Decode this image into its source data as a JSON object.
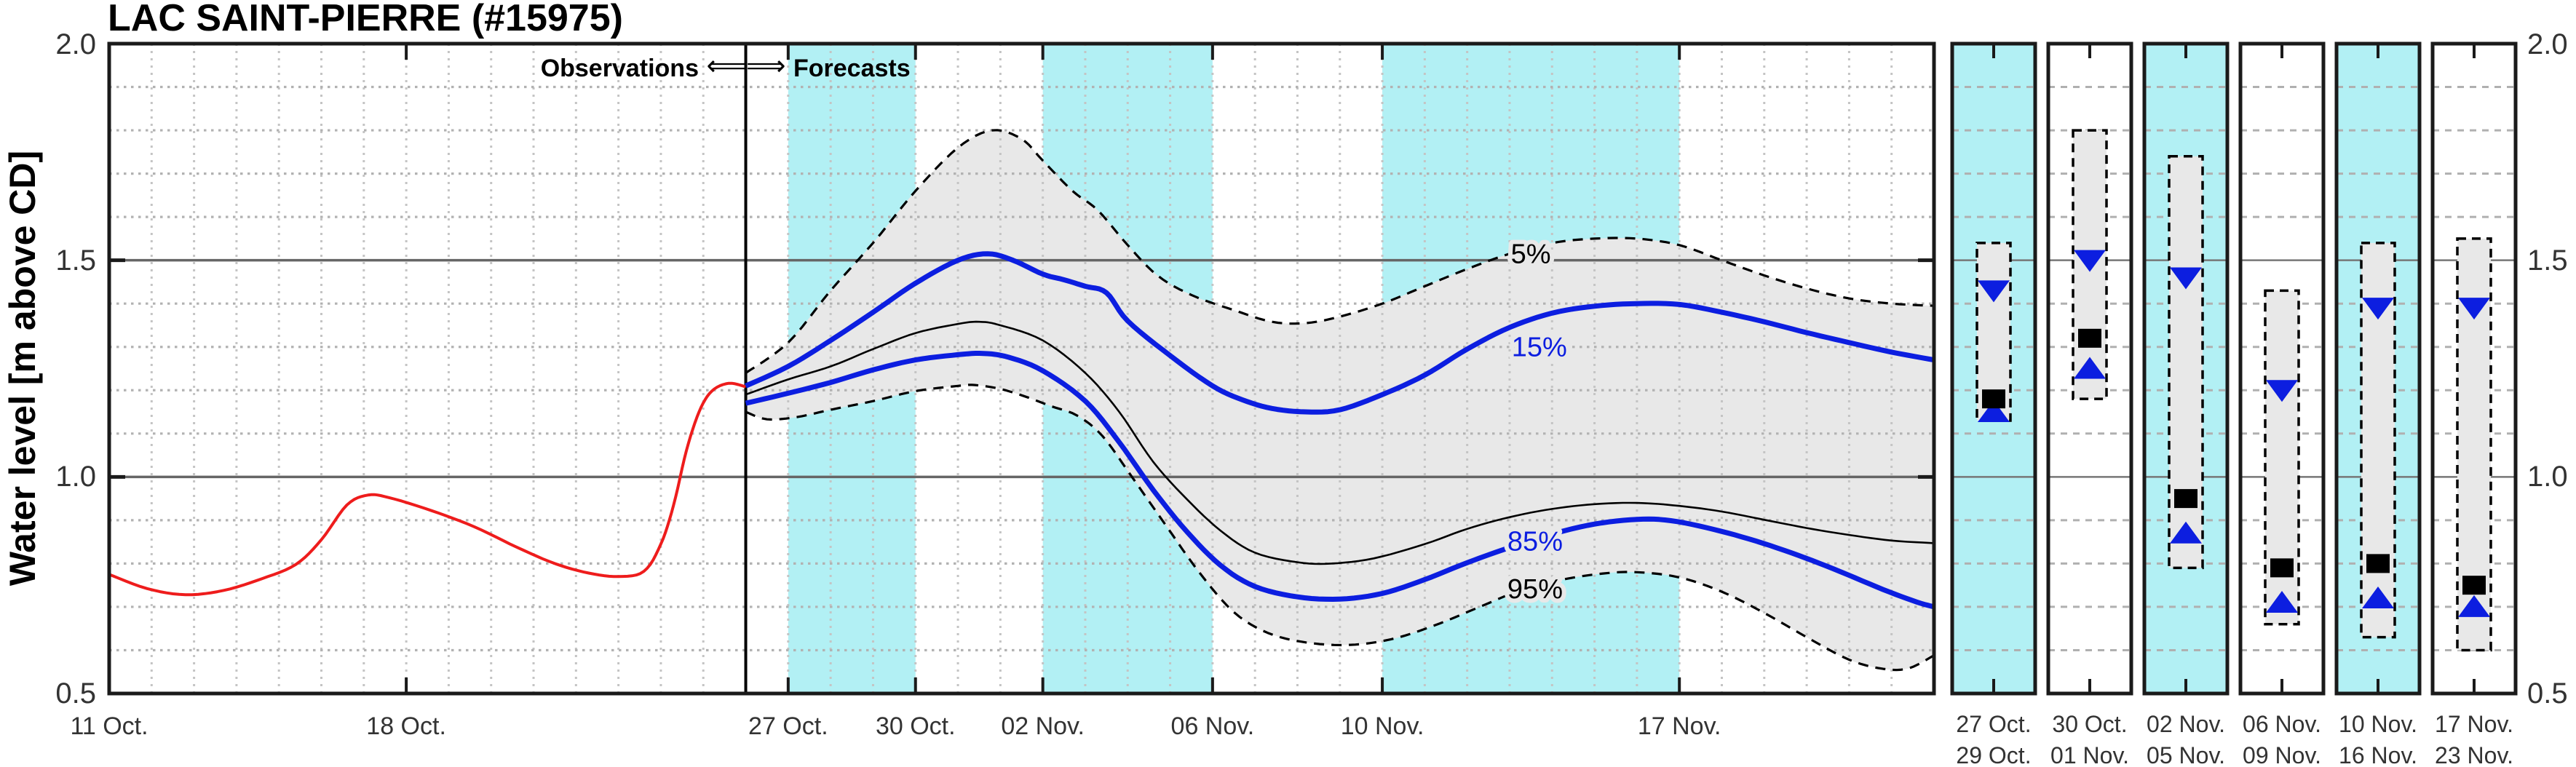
{
  "title": "LAC SAINT-PIERRE (#15975)",
  "header": {
    "observations": "Observations",
    "arrows": "⟸⟹",
    "forecasts": "Forecasts"
  },
  "y_axis": {
    "label": "Water level [m above CD]",
    "ticks": [
      "2.0",
      "1.5",
      "1.0",
      "0.5"
    ]
  },
  "colors": {
    "observed_red": "#ee1c1c",
    "percentile_blue": "#0c1ee0",
    "line_black": "#000000",
    "band_gray": "#e8e8e8",
    "highlight_cyan": "#b2f0f4",
    "grid_gray_vertical": "#c4c4c4",
    "grid_gray_horizontal": "#b2b2b2",
    "major_line_gray": "#666666",
    "panel_minor_gray": "#b0b0b0",
    "frame": "#1a1a1a",
    "tick_text": "#333333"
  },
  "chart_data": {
    "type": "line",
    "title": "LAC SAINT-PIERRE (#15975)",
    "ylabel": "Water level [m above CD]",
    "ylim": [
      0.5,
      2.0
    ],
    "y_tick_values": [
      2.0,
      1.5,
      1.0,
      0.5
    ],
    "y_major_gridlines": [
      1.0,
      1.5
    ],
    "grid": "minor dotted every 0.1 and every day",
    "x_unit": "days since 11 Oct.",
    "xlim_days": [
      0,
      43
    ],
    "divider_day": 15,
    "divider_meaning": "boundary between Observations and Forecasts (26 Oct.)",
    "x_ticks": [
      {
        "label": "11 Oct.",
        "day": 0
      },
      {
        "label": "18 Oct.",
        "day": 7
      },
      {
        "label": "27 Oct.",
        "day": 16
      },
      {
        "label": "30 Oct.",
        "day": 19
      },
      {
        "label": "02 Nov.",
        "day": 22
      },
      {
        "label": "06 Nov.",
        "day": 26
      },
      {
        "label": "10 Nov.",
        "day": 30
      },
      {
        "label": "17 Nov.",
        "day": 37
      }
    ],
    "shade_bands_days": [
      [
        16,
        19
      ],
      [
        22,
        26
      ],
      [
        30,
        37
      ]
    ],
    "band_between": [
      "5%",
      "95%"
    ],
    "series": [
      {
        "name": "Observed",
        "color": "#ee1c1c",
        "width": 4,
        "dash": null,
        "points": [
          [
            0,
            0.775
          ],
          [
            0.9,
            0.742
          ],
          [
            1.8,
            0.728
          ],
          [
            2.7,
            0.738
          ],
          [
            3.6,
            0.765
          ],
          [
            4.4,
            0.798
          ],
          [
            5.0,
            0.855
          ],
          [
            5.6,
            0.935
          ],
          [
            6.1,
            0.958
          ],
          [
            6.6,
            0.952
          ],
          [
            7.6,
            0.922
          ],
          [
            8.6,
            0.885
          ],
          [
            9.6,
            0.838
          ],
          [
            10.5,
            0.8
          ],
          [
            11.3,
            0.778
          ],
          [
            12.0,
            0.77
          ],
          [
            12.6,
            0.782
          ],
          [
            13.0,
            0.845
          ],
          [
            13.3,
            0.935
          ],
          [
            13.6,
            1.06
          ],
          [
            13.9,
            1.15
          ],
          [
            14.2,
            1.198
          ],
          [
            14.6,
            1.216
          ],
          [
            15.0,
            1.208
          ]
        ]
      },
      {
        "name": "5%",
        "color": "#000000",
        "width": 3.2,
        "dash": "14,10",
        "points": [
          [
            15,
            1.24
          ],
          [
            16,
            1.31
          ],
          [
            17,
            1.43
          ],
          [
            18,
            1.54
          ],
          [
            19,
            1.66
          ],
          [
            20,
            1.76
          ],
          [
            20.8,
            1.8
          ],
          [
            21.5,
            1.78
          ],
          [
            22,
            1.73
          ],
          [
            22.7,
            1.66
          ],
          [
            23.3,
            1.615
          ],
          [
            24,
            1.535
          ],
          [
            24.7,
            1.465
          ],
          [
            25.5,
            1.42
          ],
          [
            26.5,
            1.385
          ],
          [
            27.4,
            1.358
          ],
          [
            28.2,
            1.355
          ],
          [
            29,
            1.37
          ],
          [
            30,
            1.4
          ],
          [
            31,
            1.44
          ],
          [
            32,
            1.48
          ],
          [
            33,
            1.515
          ],
          [
            34,
            1.54
          ],
          [
            35,
            1.55
          ],
          [
            36,
            1.55
          ],
          [
            37,
            1.535
          ],
          [
            38,
            1.5
          ],
          [
            39,
            1.465
          ],
          [
            40,
            1.435
          ],
          [
            41,
            1.412
          ],
          [
            42,
            1.4
          ],
          [
            43,
            1.395
          ]
        ]
      },
      {
        "name": "95%",
        "color": "#000000",
        "width": 3.2,
        "dash": "14,10",
        "points": [
          [
            15,
            1.15
          ],
          [
            15.5,
            1.133
          ],
          [
            16.2,
            1.138
          ],
          [
            17,
            1.155
          ],
          [
            18,
            1.175
          ],
          [
            19,
            1.198
          ],
          [
            20,
            1.21
          ],
          [
            20.4,
            1.212
          ],
          [
            21,
            1.203
          ],
          [
            21.6,
            1.185
          ],
          [
            22.2,
            1.163
          ],
          [
            22.8,
            1.142
          ],
          [
            23.4,
            1.095
          ],
          [
            24.1,
            1.0
          ],
          [
            24.9,
            0.888
          ],
          [
            25.7,
            0.778
          ],
          [
            26.5,
            0.688
          ],
          [
            27.3,
            0.64
          ],
          [
            28.2,
            0.618
          ],
          [
            29.2,
            0.612
          ],
          [
            30.2,
            0.625
          ],
          [
            31.2,
            0.656
          ],
          [
            32.2,
            0.696
          ],
          [
            33.2,
            0.736
          ],
          [
            34.2,
            0.762
          ],
          [
            35.2,
            0.777
          ],
          [
            36,
            0.78
          ],
          [
            37,
            0.768
          ],
          [
            38,
            0.735
          ],
          [
            39,
            0.686
          ],
          [
            40,
            0.63
          ],
          [
            41,
            0.578
          ],
          [
            41.8,
            0.557
          ],
          [
            42.4,
            0.558
          ],
          [
            43,
            0.588
          ]
        ]
      },
      {
        "name": "15%",
        "color": "#0c1ee0",
        "width": 7,
        "dash": null,
        "points": [
          [
            15,
            1.21
          ],
          [
            16,
            1.255
          ],
          [
            17,
            1.315
          ],
          [
            18,
            1.38
          ],
          [
            19,
            1.447
          ],
          [
            20,
            1.5
          ],
          [
            20.7,
            1.515
          ],
          [
            21.3,
            1.5
          ],
          [
            22,
            1.468
          ],
          [
            22.5,
            1.455
          ],
          [
            23,
            1.44
          ],
          [
            23.5,
            1.425
          ],
          [
            24,
            1.36
          ],
          [
            25,
            1.28
          ],
          [
            26,
            1.21
          ],
          [
            26.7,
            1.178
          ],
          [
            27.4,
            1.158
          ],
          [
            28.2,
            1.15
          ],
          [
            29,
            1.155
          ],
          [
            30,
            1.19
          ],
          [
            31,
            1.235
          ],
          [
            32,
            1.295
          ],
          [
            33,
            1.345
          ],
          [
            34,
            1.378
          ],
          [
            35,
            1.394
          ],
          [
            36,
            1.4
          ],
          [
            37,
            1.398
          ],
          [
            38,
            1.38
          ],
          [
            39,
            1.358
          ],
          [
            40,
            1.333
          ],
          [
            41,
            1.31
          ],
          [
            42,
            1.288
          ],
          [
            43,
            1.27
          ]
        ]
      },
      {
        "name": "85%",
        "color": "#0c1ee0",
        "width": 7,
        "dash": null,
        "points": [
          [
            15,
            1.17
          ],
          [
            16,
            1.193
          ],
          [
            17,
            1.218
          ],
          [
            18,
            1.247
          ],
          [
            19,
            1.27
          ],
          [
            20,
            1.282
          ],
          [
            20.6,
            1.285
          ],
          [
            21.2,
            1.276
          ],
          [
            22,
            1.245
          ],
          [
            23,
            1.175
          ],
          [
            23.8,
            1.08
          ],
          [
            24.6,
            0.97
          ],
          [
            25.4,
            0.873
          ],
          [
            26.2,
            0.795
          ],
          [
            27,
            0.747
          ],
          [
            28,
            0.723
          ],
          [
            29,
            0.718
          ],
          [
            30,
            0.731
          ],
          [
            31,
            0.763
          ],
          [
            32,
            0.802
          ],
          [
            33,
            0.837
          ],
          [
            34,
            0.868
          ],
          [
            35,
            0.891
          ],
          [
            36,
            0.902
          ],
          [
            36.8,
            0.899
          ],
          [
            37.8,
            0.879
          ],
          [
            38.8,
            0.852
          ],
          [
            39.8,
            0.819
          ],
          [
            40.8,
            0.781
          ],
          [
            41.8,
            0.74
          ],
          [
            42.6,
            0.711
          ],
          [
            43,
            0.7
          ]
        ]
      },
      {
        "name": "median",
        "color": "#000000",
        "width": 2.6,
        "dash": null,
        "points": [
          [
            15,
            1.19
          ],
          [
            16,
            1.225
          ],
          [
            17,
            1.255
          ],
          [
            18,
            1.295
          ],
          [
            19,
            1.332
          ],
          [
            20,
            1.353
          ],
          [
            20.5,
            1.358
          ],
          [
            21,
            1.35
          ],
          [
            22,
            1.315
          ],
          [
            23,
            1.24
          ],
          [
            23.8,
            1.15
          ],
          [
            24.6,
            1.035
          ],
          [
            25.4,
            0.948
          ],
          [
            26.2,
            0.875
          ],
          [
            27,
            0.825
          ],
          [
            28,
            0.803
          ],
          [
            28.8,
            0.8
          ],
          [
            29.8,
            0.812
          ],
          [
            31,
            0.845
          ],
          [
            32,
            0.88
          ],
          [
            33,
            0.907
          ],
          [
            34,
            0.926
          ],
          [
            35,
            0.937
          ],
          [
            36,
            0.94
          ],
          [
            37,
            0.933
          ],
          [
            38,
            0.92
          ],
          [
            39,
            0.901
          ],
          [
            40,
            0.882
          ],
          [
            41,
            0.866
          ],
          [
            42,
            0.853
          ],
          [
            43,
            0.847
          ]
        ]
      }
    ],
    "labels": [
      {
        "text": "5%",
        "day": 33.5,
        "value": 1.515,
        "color": "#000000"
      },
      {
        "text": "15%",
        "day": 33.7,
        "value": 1.3,
        "color": "#0c1ee0"
      },
      {
        "text": "85%",
        "day": 33.6,
        "value": 0.852,
        "color": "#0c1ee0"
      },
      {
        "text": "95%",
        "day": 33.6,
        "value": 0.742,
        "color": "#000000"
      }
    ]
  },
  "panels": [
    {
      "start": "27 Oct.",
      "end": "29 Oct.",
      "highlight": true,
      "range_low": 1.13,
      "range_high": 1.54,
      "p15": 1.43,
      "median": 1.18,
      "p85": 1.15
    },
    {
      "start": "30 Oct.",
      "end": "01 Nov.",
      "highlight": false,
      "range_low": 1.18,
      "range_high": 1.8,
      "p15": 1.5,
      "median": 1.32,
      "p85": 1.25
    },
    {
      "start": "02 Nov.",
      "end": "05 Nov.",
      "highlight": true,
      "range_low": 0.79,
      "range_high": 1.74,
      "p15": 1.46,
      "median": 0.95,
      "p85": 0.87
    },
    {
      "start": "06 Nov.",
      "end": "09 Nov.",
      "highlight": false,
      "range_low": 0.66,
      "range_high": 1.43,
      "p15": 1.2,
      "median": 0.79,
      "p85": 0.71
    },
    {
      "start": "10 Nov.",
      "end": "16 Nov.",
      "highlight": true,
      "range_low": 0.63,
      "range_high": 1.54,
      "p15": 1.39,
      "median": 0.8,
      "p85": 0.72
    },
    {
      "start": "17 Nov.",
      "end": "23 Nov.",
      "highlight": false,
      "range_low": 0.6,
      "range_high": 1.55,
      "p15": 1.39,
      "median": 0.75,
      "p85": 0.7
    }
  ]
}
